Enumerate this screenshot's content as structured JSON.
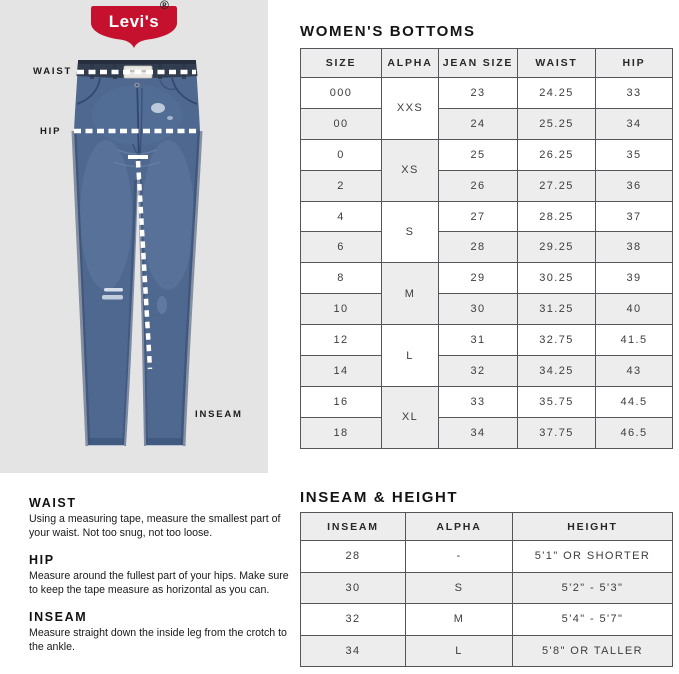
{
  "brand": {
    "logo_text": "Levi's",
    "registered_mark": "®",
    "red": "#c6112e"
  },
  "diagram": {
    "waist_label": "WAIST",
    "hip_label": "HIP",
    "inseam_label": "INSEAM"
  },
  "sizes_section": {
    "title": "WOMEN'S BOTTOMS",
    "columns": [
      "SIZE",
      "ALPHA",
      "JEAN SIZE",
      "WAIST",
      "HIP"
    ],
    "groups": [
      {
        "alpha": "XXS",
        "shaded": false,
        "rows": [
          {
            "size": "000",
            "jean": "23",
            "waist": "24.25",
            "hip": "33"
          },
          {
            "size": "00",
            "jean": "24",
            "waist": "25.25",
            "hip": "34"
          }
        ]
      },
      {
        "alpha": "XS",
        "shaded": true,
        "rows": [
          {
            "size": "0",
            "jean": "25",
            "waist": "26.25",
            "hip": "35"
          },
          {
            "size": "2",
            "jean": "26",
            "waist": "27.25",
            "hip": "36"
          }
        ]
      },
      {
        "alpha": "S",
        "shaded": false,
        "rows": [
          {
            "size": "4",
            "jean": "27",
            "waist": "28.25",
            "hip": "37"
          },
          {
            "size": "6",
            "jean": "28",
            "waist": "29.25",
            "hip": "38"
          }
        ]
      },
      {
        "alpha": "M",
        "shaded": true,
        "rows": [
          {
            "size": "8",
            "jean": "29",
            "waist": "30.25",
            "hip": "39"
          },
          {
            "size": "10",
            "jean": "30",
            "waist": "31.25",
            "hip": "40"
          }
        ]
      },
      {
        "alpha": "L",
        "shaded": false,
        "rows": [
          {
            "size": "12",
            "jean": "31",
            "waist": "32.75",
            "hip": "41.5"
          },
          {
            "size": "14",
            "jean": "32",
            "waist": "34.25",
            "hip": "43"
          }
        ]
      },
      {
        "alpha": "XL",
        "shaded": true,
        "rows": [
          {
            "size": "16",
            "jean": "33",
            "waist": "35.75",
            "hip": "44.5"
          },
          {
            "size": "18",
            "jean": "34",
            "waist": "37.75",
            "hip": "46.5"
          }
        ]
      }
    ]
  },
  "inseam_section": {
    "title": "INSEAM & HEIGHT",
    "columns": [
      "INSEAM",
      "ALPHA",
      "HEIGHT"
    ],
    "rows": [
      {
        "inseam": "28",
        "alpha": "-",
        "height": "5'1\" OR SHORTER",
        "shaded": false
      },
      {
        "inseam": "30",
        "alpha": "S",
        "height": "5'2\" - 5'3\"",
        "shaded": true
      },
      {
        "inseam": "32",
        "alpha": "M",
        "height": "5'4\" - 5'7\"",
        "shaded": false
      },
      {
        "inseam": "34",
        "alpha": "L",
        "height": "5'8\" OR TALLER",
        "shaded": true
      }
    ]
  },
  "guide": {
    "sections": [
      {
        "heading": "WAIST",
        "text": "Using a measuring tape, measure the smallest part of your waist. Not too snug, not too loose."
      },
      {
        "heading": "HIP",
        "text": "Measure around the fullest part of your hips. Make sure to keep the tape measure as horizontal as you can."
      },
      {
        "heading": "INSEAM",
        "text": "Measure straight down the inside leg from the crotch to the ankle."
      }
    ]
  },
  "colors": {
    "panel_gray": "#e4e4e5",
    "row_shade": "#ededee",
    "table_border": "#54555a",
    "denim": "#4e6890",
    "waistband": "#323c4f"
  }
}
